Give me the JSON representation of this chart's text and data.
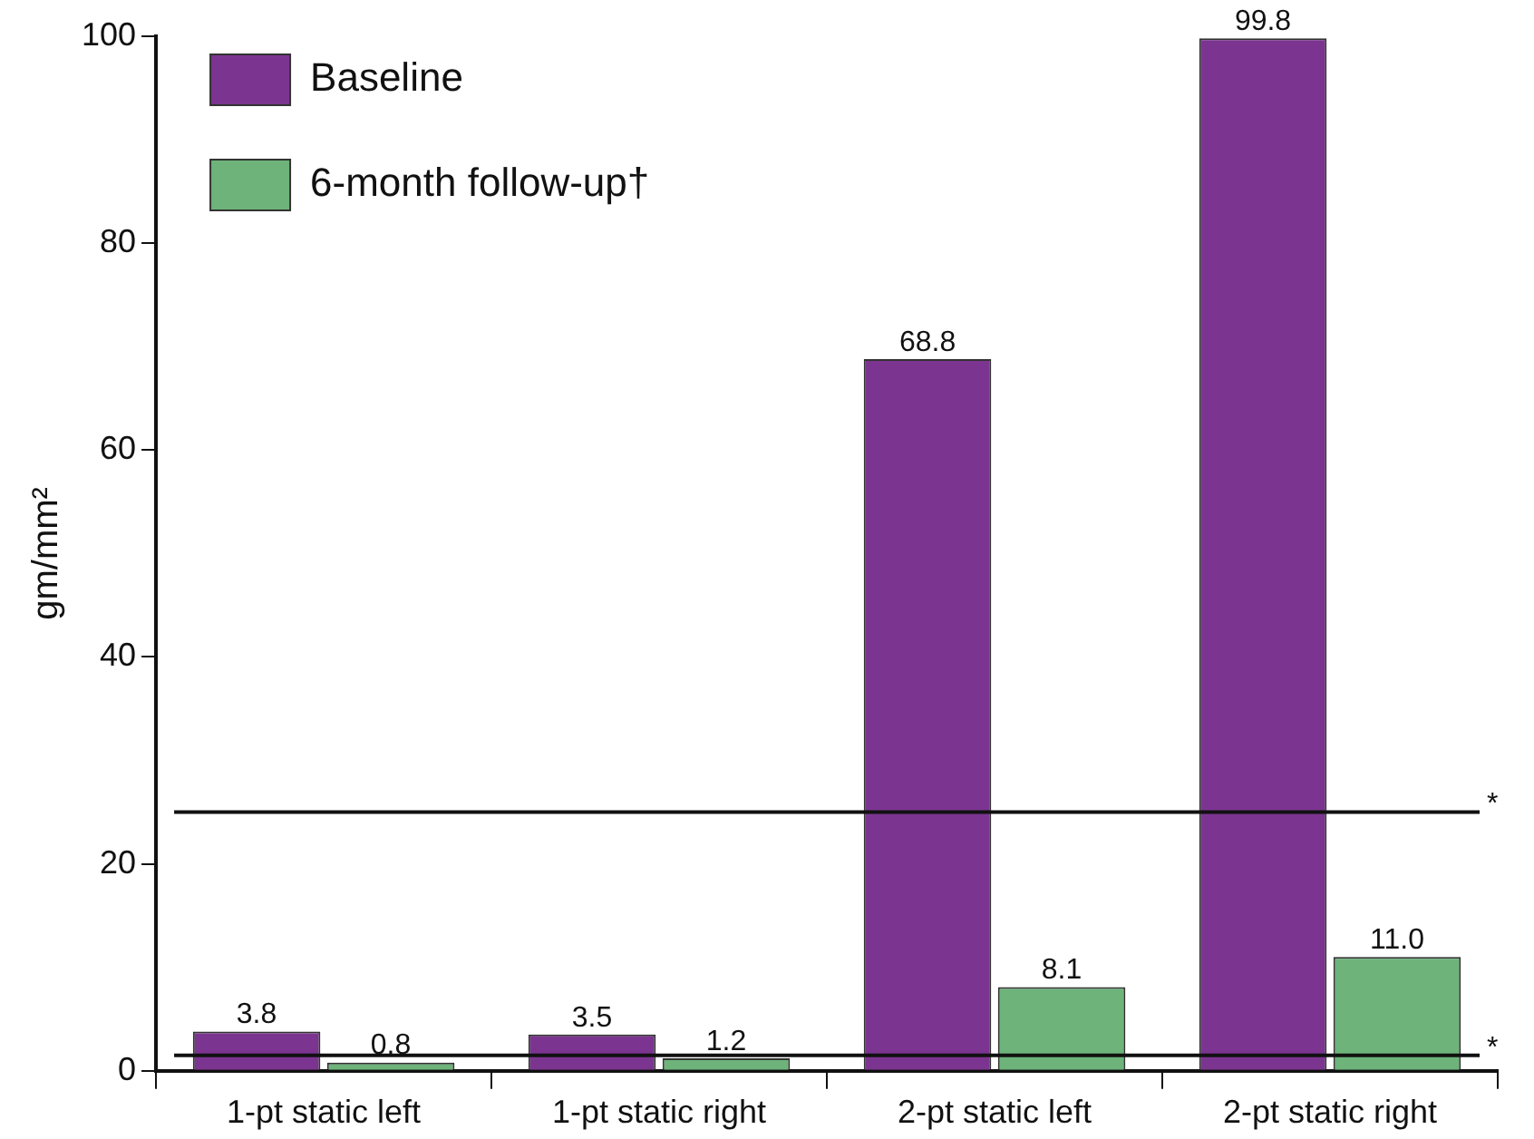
{
  "chart_data": {
    "type": "bar",
    "ylabel": "gm/mm²",
    "categories": [
      "1-pt static left",
      "1-pt static right",
      "2-pt static left",
      "2-pt static right"
    ],
    "series": [
      {
        "name": "Baseline",
        "color": "#7b3590",
        "values": [
          3.8,
          3.5,
          68.8,
          99.8
        ],
        "value_labels": [
          "3.8",
          "3.5",
          "68.8",
          "99.8"
        ]
      },
      {
        "name": "6-month follow-up†",
        "color": "#6db37a",
        "values": [
          0.8,
          1.2,
          8.1,
          11.0
        ],
        "value_labels": [
          "0.8",
          "1.2",
          "8.1",
          "11.0"
        ]
      }
    ],
    "ylim": [
      0,
      100
    ],
    "yticks": [
      0,
      20,
      40,
      60,
      80,
      100
    ],
    "grid": false,
    "legend": "top left",
    "ref_lines": [
      {
        "axis": "y",
        "value": 1.5,
        "label": "*"
      },
      {
        "axis": "y",
        "value": 25,
        "label": "*"
      }
    ]
  }
}
